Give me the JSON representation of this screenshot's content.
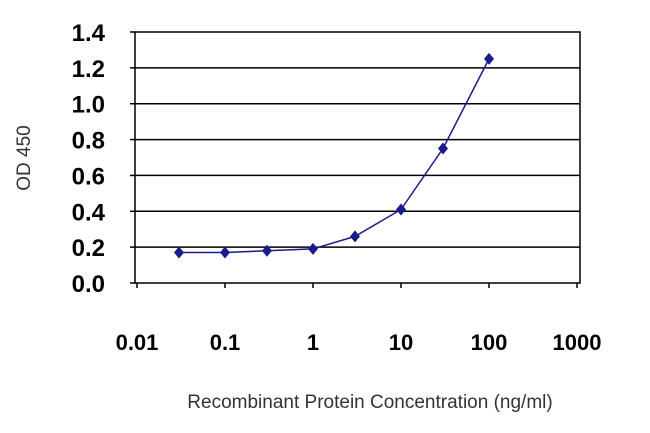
{
  "chart_data": {
    "type": "line",
    "title": "",
    "xlabel": "Recombinant Protein Concentration (ng/ml)",
    "ylabel": "OD 450",
    "xscale": "log",
    "xlim": [
      0.01,
      1000
    ],
    "ylim": [
      0.0,
      1.4
    ],
    "xticks": [
      "0.01",
      "0.1",
      "1",
      "10",
      "100",
      "1000"
    ],
    "yticks": [
      "0.0",
      "0.2",
      "0.4",
      "0.6",
      "0.8",
      "1.0",
      "1.2",
      "1.4"
    ],
    "grid": "horizontal",
    "legend": "none",
    "marker": "diamond",
    "color": "#1a1a8c",
    "series": [
      {
        "x": [
          0.03,
          0.1,
          0.3,
          1,
          3,
          10,
          30,
          100
        ],
        "y": [
          0.17,
          0.17,
          0.18,
          0.19,
          0.26,
          0.41,
          0.75,
          1.25
        ]
      }
    ]
  }
}
